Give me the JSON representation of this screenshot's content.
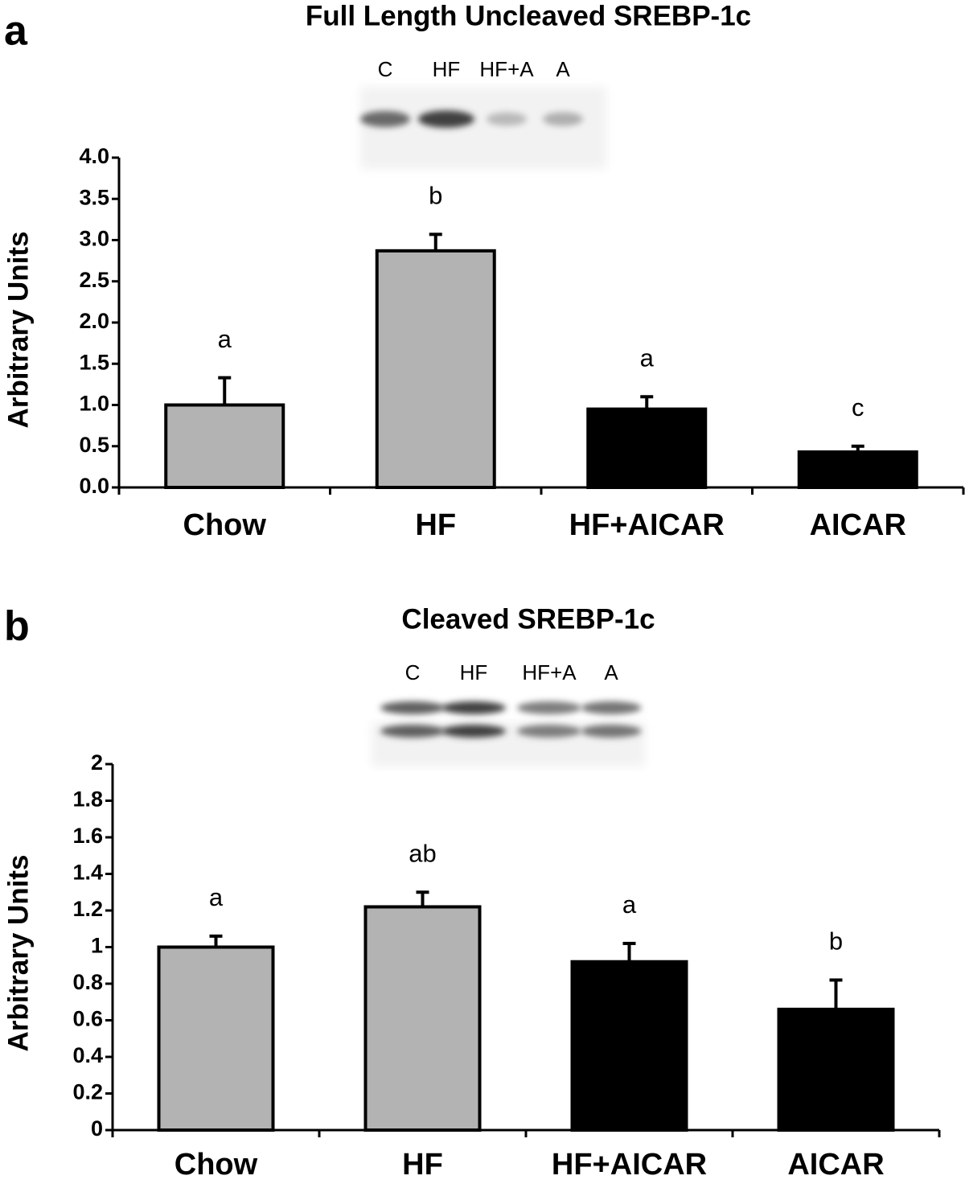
{
  "chart_data": [
    {
      "type": "bar",
      "panel_label": "a",
      "title": "Full Length Uncleaved SREBP-1c",
      "y_label": "Arbitrary Units",
      "blot_lanes": [
        "C",
        "HF",
        "HF+A",
        "A"
      ],
      "categories": [
        "Chow",
        "HF",
        "HF+AICAR",
        "AICAR"
      ],
      "values": [
        1.0,
        2.87,
        0.95,
        0.43
      ],
      "errors": [
        0.33,
        0.2,
        0.15,
        0.07
      ],
      "annotations": [
        "a",
        "b",
        "a",
        "c"
      ],
      "colors": [
        "#b3b3b3",
        "#b3b3b3",
        "#000000",
        "#000000"
      ],
      "ylim": [
        0,
        4.0
      ],
      "yticks": [
        {
          "value": 0,
          "label": "0.0"
        },
        0.5,
        {
          "value": 1,
          "label": "1.0"
        },
        1.5,
        {
          "value": 2,
          "label": "2.0"
        },
        2.5,
        {
          "value": 3,
          "label": "3.0"
        },
        3.5,
        {
          "value": 4,
          "label": "4.0"
        }
      ]
    },
    {
      "type": "bar",
      "panel_label": "b",
      "title": "Cleaved SREBP-1c",
      "y_label": "Arbitrary Units",
      "blot_lanes": [
        "C",
        "HF",
        "HF+A",
        "A"
      ],
      "categories": [
        "Chow",
        "HF",
        "HF+AICAR",
        "AICAR"
      ],
      "values": [
        1.0,
        1.22,
        0.92,
        0.66
      ],
      "errors": [
        0.06,
        0.08,
        0.1,
        0.16
      ],
      "annotations": [
        "a",
        "ab",
        "a",
        "b"
      ],
      "colors": [
        "#b3b3b3",
        "#b3b3b3",
        "#000000",
        "#000000"
      ],
      "ylim": [
        0,
        2
      ],
      "yticks": [
        0,
        0.2,
        0.4,
        0.6,
        0.8,
        1,
        1.2,
        1.4,
        1.6,
        1.8,
        2
      ]
    }
  ]
}
